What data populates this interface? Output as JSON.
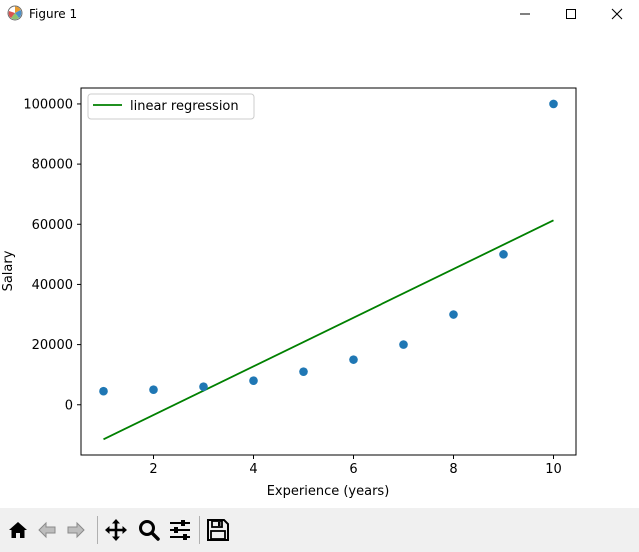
{
  "window": {
    "title": "Figure 1",
    "controls": [
      "minimize",
      "maximize",
      "close"
    ]
  },
  "chart_data": {
    "type": "scatter",
    "title": "",
    "xlabel": "Experience (years)",
    "ylabel": "Salary",
    "xlim": [
      0.55,
      10.45
    ],
    "ylim": [
      -16700,
      105300
    ],
    "x_ticks": [
      2,
      4,
      6,
      8,
      10
    ],
    "x_tick_labels": [
      "2",
      "4",
      "6",
      "8",
      "10"
    ],
    "y_ticks": [
      0,
      20000,
      40000,
      60000,
      80000,
      100000
    ],
    "y_tick_labels": [
      "0",
      "20000",
      "40000",
      "60000",
      "80000",
      "100000"
    ],
    "grid": false,
    "legend_placement": "upper-left",
    "scatter": {
      "color": "#1f77b4",
      "x": [
        1,
        2,
        3,
        4,
        5,
        6,
        7,
        8,
        9,
        10
      ],
      "y": [
        4500,
        5000,
        6000,
        8000,
        11000,
        15000,
        20000,
        30000,
        50000,
        100000
      ]
    },
    "series": [
      {
        "name": "linear regression",
        "type": "line",
        "color": "#008000",
        "x": [
          1,
          10
        ],
        "y": [
          -11500,
          61300
        ]
      }
    ]
  },
  "toolbar": {
    "items": [
      {
        "name": "home-button",
        "icon": "home-icon",
        "enabled": true
      },
      {
        "name": "back-button",
        "icon": "arrow-left-icon",
        "enabled": false
      },
      {
        "name": "forward-button",
        "icon": "arrow-right-icon",
        "enabled": false
      },
      {
        "name": "pan-button",
        "icon": "move-icon",
        "enabled": true
      },
      {
        "name": "zoom-button",
        "icon": "magnifier-icon",
        "enabled": true
      },
      {
        "name": "subplots-button",
        "icon": "sliders-icon",
        "enabled": true
      },
      {
        "name": "save-button",
        "icon": "floppy-icon",
        "enabled": true
      }
    ]
  }
}
